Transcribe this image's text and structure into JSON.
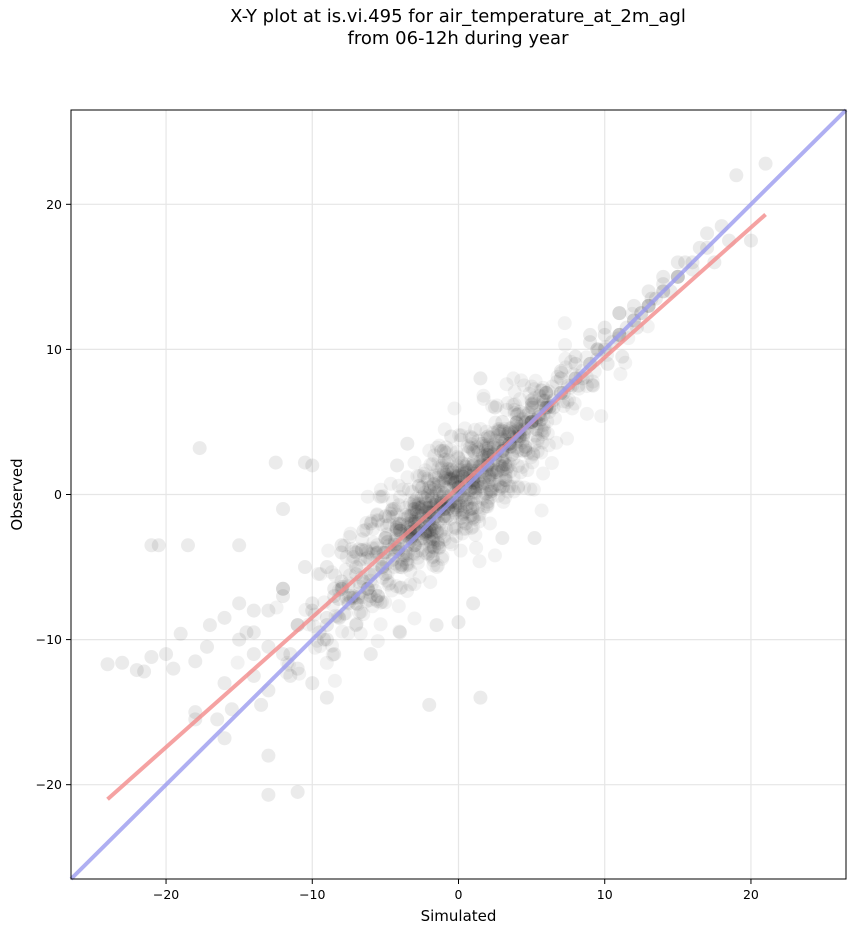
{
  "chart_data": {
    "type": "scatter",
    "title_line1": "X-Y plot at is.vi.495 for air_temperature_at_2m_agl",
    "title_line2": "from 06-12h during year",
    "xlabel": "Simulated",
    "ylabel": "Observed",
    "xlim": [
      -26.5,
      26.5
    ],
    "ylim": [
      -26.5,
      26.5
    ],
    "xticks": [
      -20,
      -10,
      0,
      10,
      20
    ],
    "yticks": [
      -20,
      -10,
      0,
      10,
      20
    ],
    "xtick_labels": [
      "−20",
      "−10",
      "0",
      "10",
      "20"
    ],
    "ytick_labels": [
      "−20",
      "−10",
      "0",
      "10",
      "20"
    ],
    "grid": true,
    "points": {
      "color": "#000000",
      "opacity": 0.08,
      "x": [
        -24,
        -23,
        -21.5,
        -21,
        -20.5,
        -19.5,
        -18.5,
        -17.7,
        -17.2,
        -16.5,
        -16,
        -15.5,
        -15,
        -14.5,
        -14,
        -13.5,
        -13,
        -12.5,
        -12,
        -11.5,
        -11,
        -10.5,
        -10,
        -9.5,
        -9,
        -8.5,
        -8,
        -7.5,
        -7,
        -6.5,
        -6,
        -5.5,
        -5,
        -4.5,
        -4,
        -3.5,
        -3,
        -2.5,
        -2,
        -1.5,
        -1,
        -0.5,
        0,
        0.5,
        1,
        1.5,
        2,
        2.5,
        3,
        3.5,
        4,
        4.5,
        5,
        5.5,
        6,
        6.5,
        7,
        7.5,
        8,
        8.5,
        9,
        9.5,
        10,
        10.5,
        11,
        11.5,
        12,
        12.5,
        13,
        13.5,
        14,
        14.5,
        15,
        15.5,
        16,
        16.5,
        17,
        17.5,
        18,
        18.5,
        19,
        20,
        21,
        -22,
        -21,
        -20,
        -19,
        -18,
        -17,
        -16,
        -15,
        -14,
        -13,
        -12,
        -11,
        -10,
        -9,
        -8,
        -7,
        -6,
        -5,
        -4,
        -3,
        -2,
        -1,
        0,
        1,
        2,
        3,
        4,
        5,
        6,
        7,
        8,
        9,
        10,
        11,
        12,
        13,
        14,
        15,
        16,
        -18,
        -14,
        -13,
        -12,
        -11,
        -10,
        -9,
        -8,
        -7,
        -6,
        -5,
        -4,
        -3,
        -2,
        -1,
        0,
        1,
        2,
        3,
        4,
        5,
        6,
        7,
        8,
        9,
        10,
        11,
        12,
        13,
        14,
        15,
        -10,
        -8.5,
        -7,
        -5.5,
        -4,
        -2.5,
        -1,
        0.5,
        2,
        3.5,
        5,
        6.5,
        8,
        9.5,
        11,
        12.5,
        14,
        -15,
        -13,
        -11,
        -9,
        -7,
        -5,
        -3,
        -1,
        1,
        3,
        5,
        7,
        9,
        11,
        13,
        15,
        17,
        -12,
        -11.5,
        -13,
        -9,
        -6,
        -4,
        -3.5,
        -1,
        -0.5,
        1.5,
        2.5,
        0.5,
        -1.5,
        -2,
        1,
        0,
        2,
        3,
        -3,
        -4.5,
        -5,
        -6.5,
        -8,
        -8.5,
        -10.5,
        -12,
        -14,
        -16,
        -18,
        1.5,
        1.8,
        -0.3,
        -2.2,
        0.8,
        -1.2,
        2.2,
        3.2,
        4.2,
        -4.2,
        -5.2,
        -6.2,
        -7.2,
        -8.2,
        -9.2,
        5.2,
        6.2,
        7.2,
        8.2,
        9.2,
        10.2,
        11.2,
        12.2,
        13.2
      ],
      "y": [
        -11.7,
        -11.6,
        -12.2,
        -3.5,
        -3.5,
        -12,
        -3.5,
        3.2,
        -10.5,
        -15.5,
        -16.8,
        -14.8,
        -3.5,
        -9.5,
        -12.5,
        -14.5,
        -18,
        2.2,
        -11,
        -12.5,
        -20.5,
        2.2,
        -13,
        -9.5,
        -8.5,
        -7,
        -6.5,
        -7.5,
        -5,
        -6,
        -5.5,
        -4,
        -3,
        -4.5,
        -2.5,
        -3,
        -2,
        -1.5,
        -1.5,
        -0.5,
        0,
        -0.5,
        0.5,
        1.5,
        1,
        2,
        2.5,
        2.5,
        3,
        3.5,
        4,
        4.5,
        5,
        5.5,
        6,
        6,
        7,
        7.5,
        8,
        8,
        9,
        10,
        10,
        10.5,
        11,
        11.5,
        12,
        12.5,
        13,
        13.5,
        14.5,
        14,
        15,
        16,
        15.5,
        17,
        17,
        16,
        18.5,
        17.5,
        22,
        17.5,
        22.8,
        -12.1,
        -11.2,
        -11,
        -9.6,
        -11.5,
        -9,
        -8.5,
        -7.5,
        -8,
        -10.5,
        -7,
        -9,
        -8,
        -10,
        -6,
        -5.5,
        -7,
        -4,
        -2,
        -1,
        -2.5,
        -1,
        0.5,
        2,
        3,
        3.5,
        5,
        6,
        7,
        8.5,
        9,
        10.5,
        11,
        12.5,
        12,
        13,
        14,
        15,
        16,
        -15.5,
        -11,
        -8,
        -6.5,
        -9,
        -7.5,
        -5,
        -3.5,
        -4,
        -2,
        -1.5,
        -2.5,
        -0.5,
        0.5,
        1.5,
        2.5,
        3,
        4,
        5,
        5.5,
        6.5,
        7,
        8,
        9.5,
        11,
        11.5,
        12.5,
        13,
        14,
        15,
        16,
        2,
        -11,
        -9,
        -7,
        -5,
        -3,
        -1,
        0.5,
        2,
        3.5,
        5,
        6.5,
        8,
        10,
        11,
        12.5,
        14,
        -10,
        -13.5,
        -12,
        -9,
        -7.5,
        -5.5,
        -3.5,
        -1.5,
        0.5,
        3,
        5,
        7,
        9,
        11,
        13,
        15,
        18,
        -1,
        -11,
        -20.7,
        -14,
        -11,
        -9.5,
        3.5,
        3,
        4,
        8,
        6,
        -2,
        -9,
        -14.5,
        -7.5,
        -8.8,
        -0.5,
        -3,
        -3.5,
        -1,
        -3,
        -2.5,
        -4,
        -6.5,
        -5,
        -6.5,
        -9.5,
        -13,
        -15,
        -14,
        1.2,
        0.8,
        -1.8,
        -1,
        3,
        0.2,
        1,
        4,
        2,
        -5,
        -6.5,
        -7,
        -7.2,
        -10,
        -3,
        6,
        7,
        7.5,
        7.5,
        9,
        9.5,
        11.5,
        13.5
      ]
    },
    "lines": [
      {
        "color": "#f28b8b",
        "x": [
          -24,
          21
        ],
        "y": [
          -21,
          19.3
        ]
      },
      {
        "color": "#9b9bef",
        "x": [
          -26.5,
          26.5
        ],
        "y": [
          -26.5,
          26.5
        ]
      }
    ]
  }
}
